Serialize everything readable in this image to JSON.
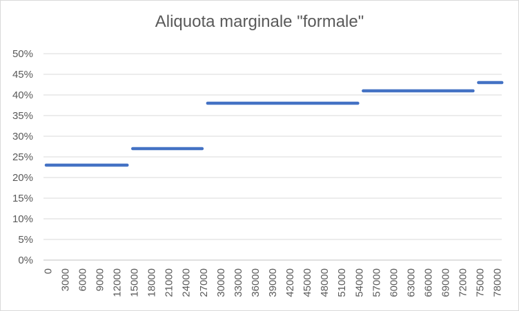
{
  "chart_data": {
    "type": "line",
    "title": "Aliquota marginale \"formale\"",
    "xlabel": "",
    "ylabel": "",
    "x_step": 1500,
    "x_tick_labels": [
      "0",
      "3000",
      "6000",
      "9000",
      "12000",
      "15000",
      "18000",
      "21000",
      "24000",
      "27000",
      "30000",
      "33000",
      "36000",
      "39000",
      "42000",
      "45000",
      "48000",
      "51000",
      "54000",
      "57000",
      "60000",
      "63000",
      "66000",
      "69000",
      "72000",
      "75000",
      "78000"
    ],
    "y_tick_labels": [
      "0%",
      "5%",
      "10%",
      "15%",
      "20%",
      "25%",
      "30%",
      "35%",
      "40%",
      "45%",
      "50%"
    ],
    "ylim": [
      0,
      0.5
    ],
    "grid": true,
    "legend": "none",
    "colors": {
      "series": "#4472c4",
      "grid": "#d9d9d9",
      "axis": "#bfbfbf",
      "text": "#595959"
    },
    "segments": [
      {
        "x_start": 0,
        "x_end": 15000,
        "y": 0.23
      },
      {
        "x_start": 15000,
        "x_end": 28000,
        "y": 0.27
      },
      {
        "x_start": 28000,
        "x_end": 55000,
        "y": 0.38
      },
      {
        "x_start": 55000,
        "x_end": 75000,
        "y": 0.41
      },
      {
        "x_start": 75000,
        "x_end": 80000,
        "y": 0.43
      }
    ]
  }
}
